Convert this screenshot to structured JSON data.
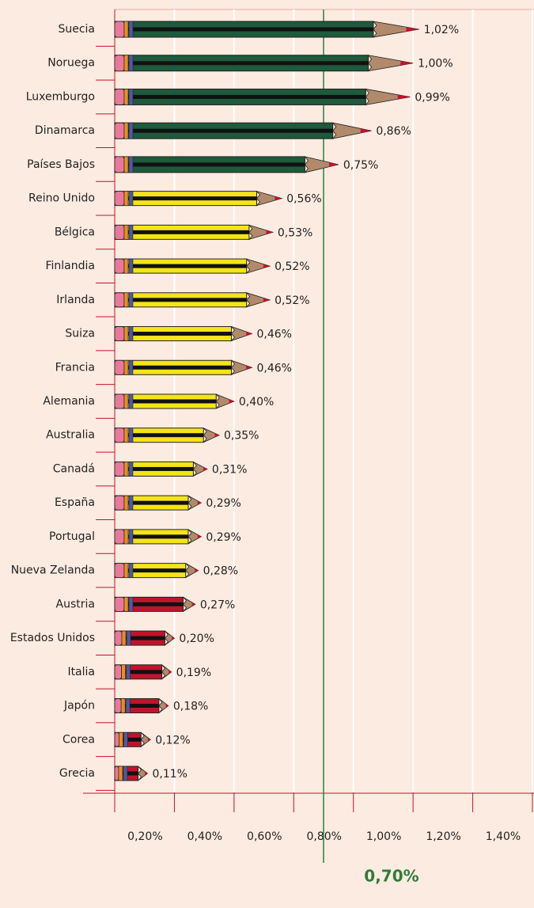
{
  "chart_data": {
    "type": "pencil-bar",
    "orientation": "horizontal",
    "categories": [
      "Suecia",
      "Noruega",
      "Luxemburgo",
      "Dinamarca",
      "Países Bajos",
      "Reino Unido",
      "Bélgica",
      "Finlandia",
      "Irlanda",
      "Suiza",
      "Francia",
      "Alemania",
      "Australia",
      "Canadá",
      "España",
      "Portugal",
      "Nueva Zelanda",
      "Austria",
      "Estados Unidos",
      "Italia",
      "Japón",
      "Corea",
      "Grecia"
    ],
    "values": [
      1.02,
      1.0,
      0.99,
      0.86,
      0.75,
      0.56,
      0.53,
      0.52,
      0.52,
      0.46,
      0.46,
      0.4,
      0.35,
      0.31,
      0.29,
      0.29,
      0.28,
      0.27,
      0.2,
      0.19,
      0.18,
      0.12,
      0.11
    ],
    "value_labels": [
      "1,02%",
      "1,00%",
      "0,99%",
      "0,86%",
      "0,75%",
      "0,56%",
      "0,53%",
      "0,52%",
      "0,52%",
      "0,46%",
      "0,46%",
      "0,40%",
      "0,35%",
      "0,31%",
      "0,29%",
      "0,29%",
      "0,28%",
      "0,27%",
      "0,20%",
      "0,19%",
      "0,18%",
      "0,12%",
      "0,11%"
    ],
    "colors": [
      "#1e5a3c",
      "#1e5a3c",
      "#1e5a3c",
      "#1e5a3c",
      "#1e5a3c",
      "#f5e416",
      "#f5e416",
      "#f5e416",
      "#f5e416",
      "#f5e416",
      "#f5e416",
      "#f5e416",
      "#f5e416",
      "#f5e416",
      "#f5e416",
      "#f5e416",
      "#f5e416",
      "#c0142a",
      "#c0142a",
      "#c0142a",
      "#c0142a",
      "#c0142a",
      "#c0142a"
    ],
    "xlim": [
      0,
      1.4
    ],
    "xticks": [
      {
        "value": 0.2,
        "label": "0,20%"
      },
      {
        "value": 0.4,
        "label": "0,40%"
      },
      {
        "value": 0.6,
        "label": "0,60%"
      },
      {
        "value": 0.8,
        "label": "0,80%"
      },
      {
        "value": 1.0,
        "label": "1,00%"
      },
      {
        "value": 1.2,
        "label": "1,20%"
      },
      {
        "value": 1.4,
        "label": "1,40%"
      }
    ],
    "grid": true,
    "reference_line": {
      "value": 0.7,
      "label": "0,70%",
      "color": "#2e7d3a"
    }
  }
}
